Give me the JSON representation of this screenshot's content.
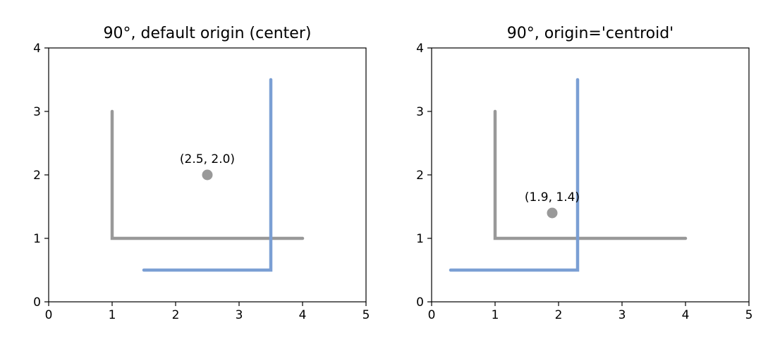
{
  "chart_data": [
    {
      "type": "line",
      "title": "90°, default origin (center)",
      "xlim": [
        0,
        5
      ],
      "ylim": [
        0,
        4
      ],
      "xticks": [
        "0",
        "1",
        "2",
        "3",
        "4",
        "5"
      ],
      "yticks": [
        "0",
        "1",
        "2",
        "3",
        "4"
      ],
      "grid": false,
      "series": [
        {
          "color": "#999999",
          "points": [
            [
              1,
              3
            ],
            [
              1,
              1
            ],
            [
              4,
              1
            ]
          ]
        },
        {
          "color": "#7b9fd4",
          "points": [
            [
              3.5,
              3.5
            ],
            [
              3.5,
              0.5
            ],
            [
              1.5,
              0.5
            ]
          ]
        }
      ],
      "marker": {
        "x": 2.5,
        "y": 2.0,
        "color": "#999999",
        "label": "(2.5, 2.0)"
      }
    },
    {
      "type": "line",
      "title": "90°, origin='centroid'",
      "xlim": [
        0,
        5
      ],
      "ylim": [
        0,
        4
      ],
      "xticks": [
        "0",
        "1",
        "2",
        "3",
        "4",
        "5"
      ],
      "yticks": [
        "0",
        "1",
        "2",
        "3",
        "4"
      ],
      "grid": false,
      "series": [
        {
          "color": "#999999",
          "points": [
            [
              1,
              3
            ],
            [
              1,
              1
            ],
            [
              4,
              1
            ]
          ]
        },
        {
          "color": "#7b9fd4",
          "points": [
            [
              2.3,
              3.5
            ],
            [
              2.3,
              0.5
            ],
            [
              0.3,
              0.5
            ]
          ]
        }
      ],
      "marker": {
        "x": 1.9,
        "y": 1.4,
        "color": "#999999",
        "label": "(1.9, 1.4)"
      }
    }
  ]
}
